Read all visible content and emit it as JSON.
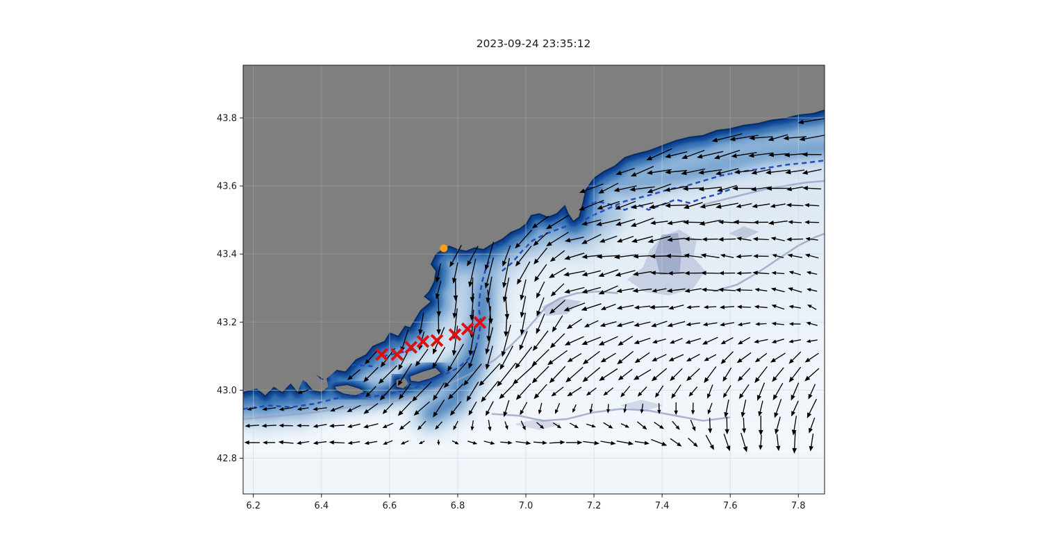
{
  "title": "2023-09-24 23:35:12",
  "axes": {
    "x_ticks": {
      "values": [
        6.2,
        6.4,
        6.6,
        6.8,
        7.0,
        7.2,
        7.4,
        7.6,
        7.8
      ],
      "labels": [
        "6.2",
        "6.4",
        "6.6",
        "6.8",
        "7.0",
        "7.2",
        "7.4",
        "7.6",
        "7.8"
      ]
    },
    "y_ticks": {
      "values": [
        42.8,
        43.0,
        43.2,
        43.4,
        43.6,
        43.8
      ],
      "labels": [
        "42.8",
        "43.0",
        "43.2",
        "43.4",
        "43.6",
        "43.8"
      ]
    },
    "xlim": [
      6.17,
      7.877
    ],
    "ylim": [
      42.695,
      43.955
    ],
    "grid": true
  },
  "chart_data": {
    "type": "map_quiver",
    "title": "2023-09-24 23:35:12",
    "xlim": [
      6.17,
      7.877
    ],
    "ylim": [
      42.695,
      43.955
    ],
    "xlabel": "",
    "ylabel": "",
    "colors": {
      "land": "#7f7f7f",
      "sea_deep_edge": "#082f68",
      "sea_band_dark": "#0f4292",
      "sea_band_mid": "#2f6cb0",
      "sea_band_light": "#6f9fcd",
      "sea_offshore_pale": "#f3f8fd",
      "contour_navy": "#2348b8",
      "contour_lavender": "#99a3c4",
      "lavender_patch": "#9aa4c6",
      "arrow": "#000000",
      "trajectory_marker": "#dd1010",
      "release_marker": "#ff9e10",
      "grid_line": "#b6c4d8"
    },
    "release_point": {
      "lon": 6.759,
      "lat": 43.417
    },
    "trajectory_markers": [
      [
        6.577,
        43.105
      ],
      [
        6.622,
        43.105
      ],
      [
        6.663,
        43.126
      ],
      [
        6.698,
        43.143
      ],
      [
        6.739,
        43.146
      ],
      [
        6.792,
        43.163
      ],
      [
        6.829,
        43.18
      ],
      [
        6.865,
        43.199
      ]
    ],
    "coastline": [
      [
        6.17,
        42.995
      ],
      [
        6.21,
        43.005
      ],
      [
        6.235,
        42.985
      ],
      [
        6.26,
        43.01
      ],
      [
        6.285,
        42.995
      ],
      [
        6.31,
        43.02
      ],
      [
        6.33,
        42.995
      ],
      [
        6.345,
        43.03
      ],
      [
        6.36,
        43.02
      ],
      [
        6.385,
        43.045
      ],
      [
        6.41,
        43.03
      ],
      [
        6.445,
        43.06
      ],
      [
        6.47,
        43.055
      ],
      [
        6.5,
        43.09
      ],
      [
        6.53,
        43.105
      ],
      [
        6.55,
        43.13
      ],
      [
        6.585,
        43.145
      ],
      [
        6.6,
        43.17
      ],
      [
        6.625,
        43.16
      ],
      [
        6.645,
        43.19
      ],
      [
        6.66,
        43.185
      ],
      [
        6.675,
        43.21
      ],
      [
        6.69,
        43.235
      ],
      [
        6.72,
        43.26
      ],
      [
        6.7,
        43.275
      ],
      [
        6.715,
        43.29
      ],
      [
        6.73,
        43.32
      ],
      [
        6.735,
        43.35
      ],
      [
        6.72,
        43.37
      ],
      [
        6.735,
        43.4
      ],
      [
        6.755,
        43.415
      ],
      [
        6.775,
        43.425
      ],
      [
        6.8,
        43.415
      ],
      [
        6.825,
        43.41
      ],
      [
        6.85,
        43.42
      ],
      [
        6.875,
        43.415
      ],
      [
        6.9,
        43.43
      ],
      [
        6.93,
        43.445
      ],
      [
        6.955,
        43.465
      ],
      [
        6.98,
        43.475
      ],
      [
        7.0,
        43.49
      ],
      [
        7.015,
        43.515
      ],
      [
        7.04,
        43.52
      ],
      [
        7.065,
        43.51
      ],
      [
        7.09,
        43.52
      ],
      [
        7.115,
        43.545
      ],
      [
        7.125,
        43.52
      ],
      [
        7.14,
        43.498
      ],
      [
        7.155,
        43.51
      ],
      [
        7.165,
        43.545
      ],
      [
        7.175,
        43.59
      ],
      [
        7.2,
        43.625
      ],
      [
        7.23,
        43.645
      ],
      [
        7.26,
        43.66
      ],
      [
        7.29,
        43.685
      ],
      [
        7.32,
        43.695
      ],
      [
        7.36,
        43.705
      ],
      [
        7.4,
        43.72
      ],
      [
        7.44,
        43.735
      ],
      [
        7.48,
        43.745
      ],
      [
        7.52,
        43.75
      ],
      [
        7.56,
        43.765
      ],
      [
        7.6,
        43.77
      ],
      [
        7.64,
        43.78
      ],
      [
        7.68,
        43.785
      ],
      [
        7.72,
        43.795
      ],
      [
        7.76,
        43.8
      ],
      [
        7.8,
        43.81
      ],
      [
        7.845,
        43.815
      ],
      [
        7.877,
        43.825
      ]
    ],
    "islands": [
      [
        [
          6.355,
          43.045
        ],
        [
          6.38,
          43.05
        ],
        [
          6.4,
          43.03
        ],
        [
          6.415,
          43.035
        ],
        [
          6.42,
          43.01
        ],
        [
          6.4,
          42.995
        ],
        [
          6.375,
          43.0
        ],
        [
          6.358,
          43.02
        ]
      ],
      [
        [
          6.44,
          43.01
        ],
        [
          6.475,
          43.015
        ],
        [
          6.51,
          43.005
        ],
        [
          6.525,
          42.995
        ],
        [
          6.5,
          42.985
        ],
        [
          6.465,
          42.99
        ],
        [
          6.445,
          43.0
        ]
      ],
      [
        [
          6.62,
          43.03
        ],
        [
          6.645,
          43.035
        ],
        [
          6.655,
          43.02
        ],
        [
          6.64,
          43.005
        ],
        [
          6.62,
          43.01
        ]
      ],
      [
        [
          6.66,
          43.04
        ],
        [
          6.7,
          43.055
        ],
        [
          6.735,
          43.065
        ],
        [
          6.75,
          43.05
        ],
        [
          6.72,
          43.035
        ],
        [
          6.685,
          43.025
        ],
        [
          6.663,
          43.028
        ]
      ]
    ],
    "islets": [
      [
        6.31,
        43.065
      ],
      [
        6.29,
        43.078
      ],
      [
        6.245,
        43.055
      ]
    ],
    "contours_navy": [
      [
        [
          6.17,
          42.945
        ],
        [
          6.25,
          42.955
        ],
        [
          6.31,
          42.95
        ],
        [
          6.38,
          42.96
        ],
        [
          6.44,
          42.975
        ],
        [
          6.5,
          42.99
        ],
        [
          6.545,
          42.98
        ],
        [
          6.6,
          42.99
        ],
        [
          6.65,
          43.0
        ],
        [
          6.7,
          43.015
        ],
        [
          6.75,
          43.04
        ],
        [
          6.8,
          43.065
        ],
        [
          6.83,
          43.09
        ],
        [
          6.852,
          43.12
        ],
        [
          6.862,
          43.16
        ],
        [
          6.868,
          43.2
        ],
        [
          6.862,
          43.24
        ],
        [
          6.865,
          43.28
        ],
        [
          6.872,
          43.32
        ],
        [
          6.882,
          43.355
        ],
        [
          6.895,
          43.385
        ]
      ],
      [
        [
          6.93,
          43.35
        ],
        [
          6.96,
          43.375
        ],
        [
          6.99,
          43.41
        ],
        [
          7.02,
          43.44
        ],
        [
          7.06,
          43.46
        ],
        [
          7.1,
          43.475
        ],
        [
          7.14,
          43.49
        ],
        [
          7.17,
          43.5
        ],
        [
          7.2,
          43.515
        ],
        [
          7.245,
          43.535
        ],
        [
          7.29,
          43.555
        ],
        [
          7.33,
          43.565
        ],
        [
          7.37,
          43.575
        ],
        [
          7.42,
          43.59
        ],
        [
          7.47,
          43.6
        ],
        [
          7.52,
          43.615
        ],
        [
          7.57,
          43.63
        ],
        [
          7.62,
          43.64
        ],
        [
          7.67,
          43.648
        ],
        [
          7.72,
          43.655
        ],
        [
          7.77,
          43.663
        ],
        [
          7.82,
          43.668
        ],
        [
          7.877,
          43.675
        ]
      ],
      [
        [
          7.17,
          43.54
        ],
        [
          7.21,
          43.555
        ],
        [
          7.25,
          43.545
        ],
        [
          7.29,
          43.53
        ],
        [
          7.33,
          43.545
        ],
        [
          7.36,
          43.53
        ],
        [
          7.4,
          43.545
        ],
        [
          7.44,
          43.56
        ],
        [
          7.48,
          43.55
        ],
        [
          7.52,
          43.565
        ],
        [
          7.56,
          43.575
        ],
        [
          7.6,
          43.59
        ]
      ],
      [
        [
          6.44,
          43.065
        ],
        [
          6.5,
          43.075
        ],
        [
          6.55,
          43.07
        ]
      ],
      [
        [
          6.58,
          43.1
        ],
        [
          6.63,
          43.11
        ],
        [
          6.67,
          43.12
        ]
      ],
      [
        [
          6.9,
          43.42
        ],
        [
          6.93,
          43.432
        ]
      ]
    ],
    "contours_lavender": [
      [
        [
          6.17,
          42.915
        ],
        [
          6.28,
          42.925
        ],
        [
          6.38,
          42.935
        ],
        [
          6.48,
          42.95
        ],
        [
          6.57,
          42.96
        ],
        [
          6.65,
          42.975
        ],
        [
          6.72,
          42.995
        ],
        [
          6.8,
          43.03
        ],
        [
          6.86,
          43.06
        ],
        [
          6.91,
          43.09
        ],
        [
          6.955,
          43.13
        ],
        [
          6.995,
          43.17
        ],
        [
          7.03,
          43.21
        ],
        [
          7.06,
          43.245
        ],
        [
          7.1,
          43.27
        ],
        [
          7.15,
          43.285
        ],
        [
          7.21,
          43.29
        ],
        [
          7.27,
          43.285
        ]
      ],
      [
        [
          7.55,
          43.29
        ],
        [
          7.62,
          43.31
        ],
        [
          7.68,
          43.345
        ],
        [
          7.74,
          43.385
        ],
        [
          7.8,
          43.425
        ],
        [
          7.85,
          43.45
        ],
        [
          7.877,
          43.46
        ]
      ],
      [
        [
          7.52,
          43.545
        ],
        [
          7.58,
          43.56
        ],
        [
          7.64,
          43.575
        ],
        [
          7.7,
          43.59
        ],
        [
          7.76,
          43.6
        ],
        [
          7.82,
          43.61
        ],
        [
          7.877,
          43.615
        ]
      ],
      [
        [
          6.9,
          42.93
        ],
        [
          6.98,
          42.925
        ],
        [
          7.05,
          42.91
        ],
        [
          7.12,
          42.915
        ],
        [
          7.2,
          42.935
        ],
        [
          7.28,
          42.945
        ],
        [
          7.36,
          42.94
        ],
        [
          7.44,
          42.925
        ],
        [
          7.52,
          42.91
        ],
        [
          7.6,
          42.92
        ]
      ]
    ],
    "lavender_patches": [
      {
        "opacity": 0.4,
        "pts": [
          [
            7.3,
            43.325
          ],
          [
            7.345,
            43.36
          ],
          [
            7.365,
            43.41
          ],
          [
            7.4,
            43.45
          ],
          [
            7.45,
            43.47
          ],
          [
            7.5,
            43.44
          ],
          [
            7.49,
            43.39
          ],
          [
            7.525,
            43.35
          ],
          [
            7.49,
            43.3
          ],
          [
            7.42,
            43.28
          ],
          [
            7.35,
            43.29
          ]
        ]
      },
      {
        "opacity": 0.8,
        "pts": [
          [
            7.395,
            43.34
          ],
          [
            7.38,
            43.4
          ],
          [
            7.4,
            43.455
          ],
          [
            7.445,
            43.46
          ],
          [
            7.455,
            43.4
          ],
          [
            7.45,
            43.345
          ]
        ]
      },
      {
        "opacity": 0.45,
        "pts": [
          [
            7.05,
            43.245
          ],
          [
            7.1,
            43.27
          ],
          [
            7.16,
            43.26
          ],
          [
            7.12,
            43.225
          ],
          [
            7.06,
            43.22
          ]
        ]
      },
      {
        "opacity": 0.45,
        "pts": [
          [
            7.6,
            43.46
          ],
          [
            7.64,
            43.48
          ],
          [
            7.68,
            43.465
          ],
          [
            7.64,
            43.445
          ]
        ]
      },
      {
        "opacity": 0.35,
        "pts": [
          [
            6.97,
            42.9
          ],
          [
            7.04,
            42.915
          ],
          [
            7.1,
            42.9
          ],
          [
            7.04,
            42.885
          ]
        ]
      },
      {
        "opacity": 0.35,
        "pts": [
          [
            7.28,
            42.955
          ],
          [
            7.34,
            42.97
          ],
          [
            7.4,
            42.955
          ],
          [
            7.34,
            42.94
          ]
        ]
      }
    ],
    "flow_field": {
      "comment_units": "angle deg (0=E, 90=N), speed 0..1, grid step deg 0.0498",
      "lons": [
        6.2,
        6.44,
        6.67,
        6.91,
        7.14,
        7.38,
        7.61,
        7.85
      ],
      "lats": [
        42.85,
        43.03,
        43.21,
        43.39,
        43.57,
        43.75
      ],
      "angles_deg": [
        [
          180,
          185,
          205,
          350,
          0,
          350,
          280,
          265
        ],
        [
          195,
          210,
          228,
          230,
          215,
          222,
          235,
          232
        ],
        [
          190,
          215,
          265,
          278,
          210,
          190,
          178,
          155
        ],
        [
          200,
          220,
          240,
          252,
          196,
          184,
          176,
          166
        ],
        [
          200,
          210,
          212,
          212,
          208,
          193,
          186,
          184
        ],
        [
          195,
          200,
          205,
          205,
          200,
          198,
          192,
          188
        ]
      ],
      "speeds": [
        [
          0.32,
          0.36,
          0.14,
          0.3,
          0.36,
          0.4,
          0.42,
          0.5
        ],
        [
          0.22,
          0.28,
          0.78,
          0.88,
          0.5,
          0.45,
          0.45,
          0.5
        ],
        [
          0.15,
          0.3,
          0.55,
          0.9,
          0.5,
          0.4,
          0.33,
          0.26
        ],
        [
          0.2,
          0.3,
          0.45,
          0.72,
          0.58,
          0.48,
          0.38,
          0.28
        ],
        [
          0.2,
          0.3,
          0.4,
          0.5,
          0.66,
          0.6,
          0.52,
          0.46
        ],
        [
          0.2,
          0.3,
          0.4,
          0.5,
          0.55,
          0.65,
          0.72,
          0.62
        ]
      ],
      "no_data_below_lat": 42.842
    }
  }
}
